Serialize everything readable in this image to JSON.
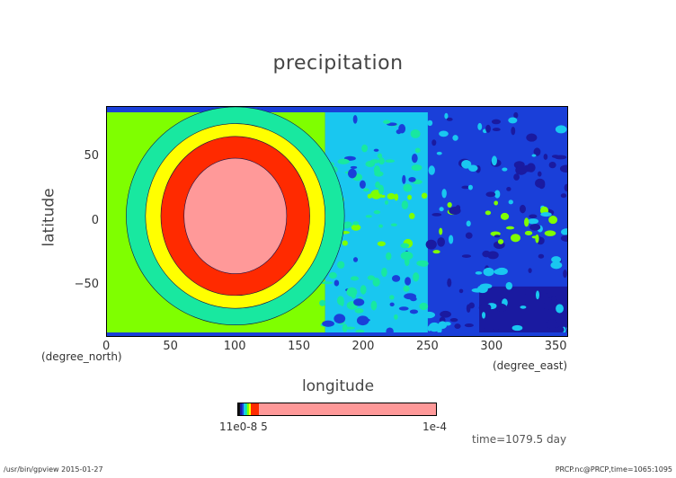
{
  "chart_data": {
    "type": "heatmap",
    "title": "precipitation",
    "xlabel": "longitude",
    "xunits": "(degree_east)",
    "ylabel": "latitude",
    "yunits": "(degree_north)",
    "xlim": [
      0,
      360
    ],
    "ylim": [
      -90,
      90
    ],
    "xticks": [
      "0",
      "50",
      "100",
      "150",
      "200",
      "250",
      "300",
      "350"
    ],
    "yticks": [
      "50",
      "0",
      "−50"
    ],
    "ytick_values": [
      50,
      0,
      -50
    ],
    "xtick_values": [
      0,
      50,
      100,
      150,
      200,
      250,
      300,
      350
    ],
    "colorbar": {
      "tick_labels": [
        "1e-5",
        "1e-4"
      ],
      "overlap_label": "11e0-8 5"
    },
    "features": [
      {
        "region": "central max",
        "lon_center": 100,
        "lat_center": 5,
        "lon_radius": 40,
        "lat_radius": 45,
        "level": "highest"
      },
      {
        "region": "central max ring",
        "lon_center": 100,
        "lat_center": 5,
        "lon_radius": 58,
        "lat_radius": 62,
        "level": "high"
      },
      {
        "region": "outer ring",
        "lon_center": 100,
        "lat_center": 5,
        "lon_radius": 70,
        "lat_radius": 72,
        "level": "medium"
      }
    ],
    "colors": [
      "#1a1aa0",
      "#1a3fd9",
      "#19c7f0",
      "#18e8a0",
      "#7fff00",
      "#ffff00",
      "#ff2a00",
      "#ff9999"
    ],
    "grid": false
  },
  "annotations": {
    "time": "time=1079.5  day",
    "footer_left": "/usr/bin/gpview  2015-01-27",
    "footer_right": "PRCP.nc@PRCP,time=1065:1095"
  }
}
